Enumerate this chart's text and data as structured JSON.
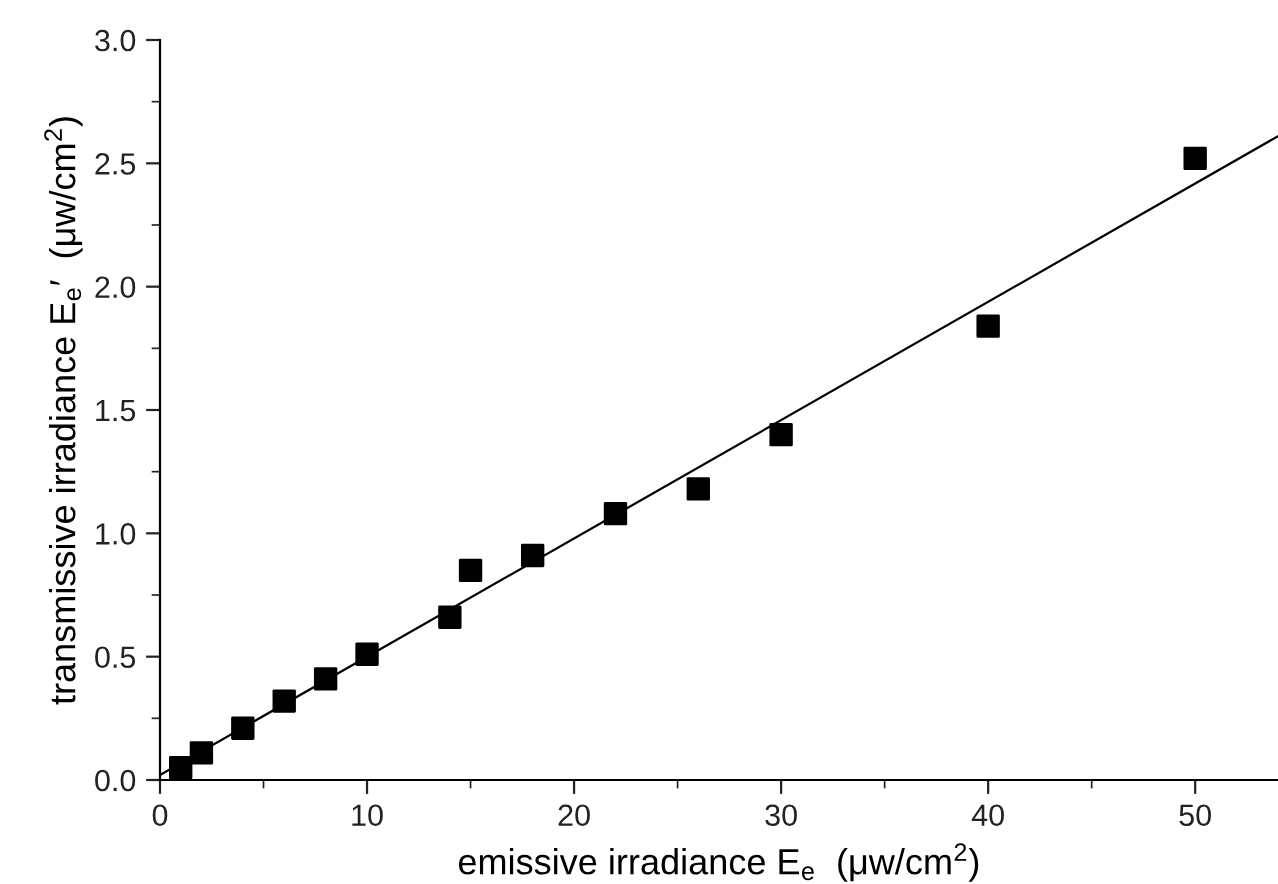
{
  "chart_data": {
    "type": "scatter",
    "xlabel": "emissive irradiance E$_{e}$  (μw/cm$^{2}$)",
    "ylabel": "transmissive irradiance E$_{e}$′  (μw/cm$^{2}$)",
    "xlim": [
      0,
      54
    ],
    "ylim": [
      0,
      3.0
    ],
    "xticks": [
      0,
      10,
      20,
      30,
      40,
      50
    ],
    "yticks": [
      {
        "value": 0,
        "label": "0.0"
      },
      {
        "value": 0.5,
        "label": "0.5"
      },
      {
        "value": 1.0,
        "label": "1.0"
      },
      {
        "value": 1.5,
        "label": "1.5"
      },
      {
        "value": 2.0,
        "label": "2.0"
      },
      {
        "value": 2.5,
        "label": "2.5"
      },
      {
        "value": 3.0,
        "label": "3.0"
      }
    ],
    "marker": "square",
    "grid": false,
    "legend": false,
    "series": [
      {
        "color": "#000000",
        "x": [
          1,
          2,
          4,
          6,
          8,
          10,
          14,
          15,
          18,
          22,
          26,
          30,
          40,
          50
        ],
        "values": [
          0.05,
          0.11,
          0.21,
          0.32,
          0.41,
          0.51,
          0.66,
          0.85,
          0.91,
          1.08,
          1.18,
          1.4,
          1.84,
          2.52
        ]
      },
      {
        "type": "line",
        "color": "#000000",
        "x": [
          0,
          54
        ],
        "values": [
          0.02,
          2.61
        ],
        "marker": "none"
      }
    ]
  }
}
